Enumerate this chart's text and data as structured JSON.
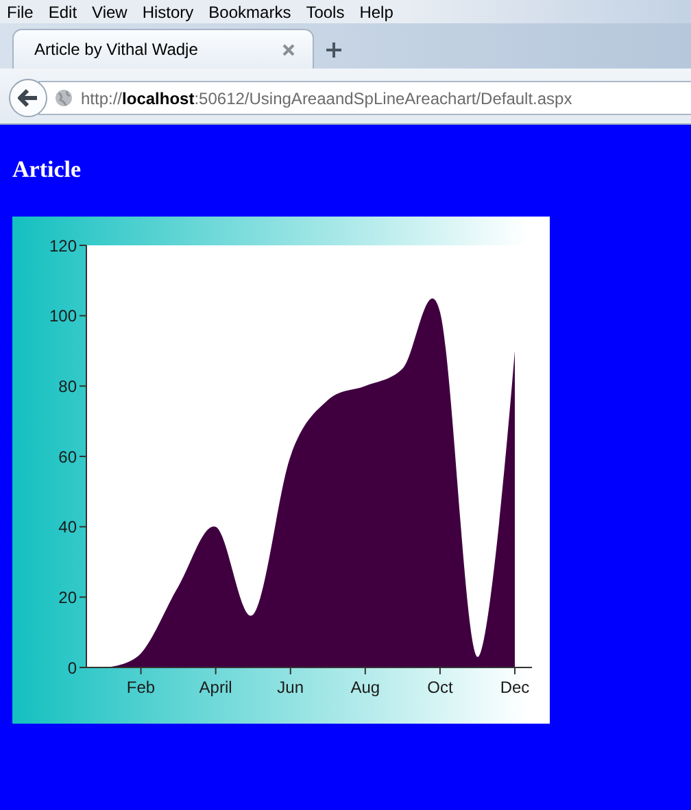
{
  "chart_data": {
    "type": "area",
    "title": "Article",
    "annotations": [
      "File",
      "Edit",
      "View",
      "History",
      "Bookmarks",
      "Tools",
      "Help",
      "Article by Vithal Wadje",
      "http://localhost:50612/UsingAreaandSpLineAreachart/Default.aspx"
    ],
    "categories": [
      null,
      "Feb",
      null,
      "April",
      null,
      "Jun",
      null,
      "Aug",
      null,
      "Oct",
      null,
      "Dec"
    ],
    "values": [
      0,
      4,
      23,
      40,
      15,
      60,
      76,
      80,
      85,
      101,
      3,
      90
    ],
    "color": "#400040",
    "ylim": [
      0,
      120
    ],
    "yticks": [
      0,
      20,
      40,
      60,
      80,
      100,
      120
    ]
  }
}
